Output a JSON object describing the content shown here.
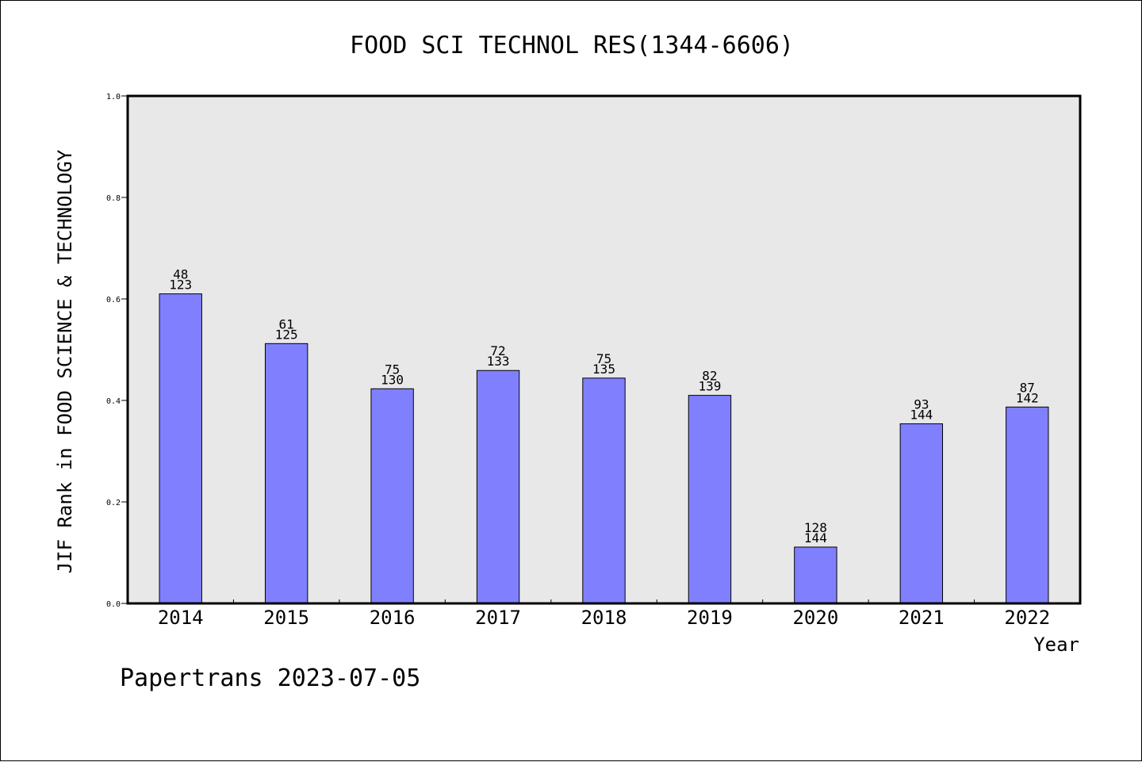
{
  "chart_data": {
    "type": "bar",
    "title": "FOOD SCI TECHNOL RES(1344-6606)",
    "xlabel": "Year",
    "ylabel": "JIF Rank in FOOD SCIENCE & TECHNOLOGY",
    "ylim": [
      0,
      1.0
    ],
    "yticks": [
      "0.0",
      "0.2",
      "0.4",
      "0.6",
      "0.8",
      "1.0"
    ],
    "categories": [
      "2014",
      "2015",
      "2016",
      "2017",
      "2018",
      "2019",
      "2020",
      "2021",
      "2022"
    ],
    "values": [
      0.61,
      0.512,
      0.423,
      0.459,
      0.444,
      0.41,
      0.111,
      0.354,
      0.387
    ],
    "rank": [
      "48",
      "61",
      "75",
      "72",
      "75",
      "82",
      "128",
      "93",
      "87"
    ],
    "total": [
      "123",
      "125",
      "130",
      "133",
      "135",
      "139",
      "144",
      "144",
      "142"
    ],
    "bar_color": "#8080ff",
    "plot_background": "#e8e8e8",
    "grid": false
  },
  "footer": "Papertrans 2023-07-05"
}
